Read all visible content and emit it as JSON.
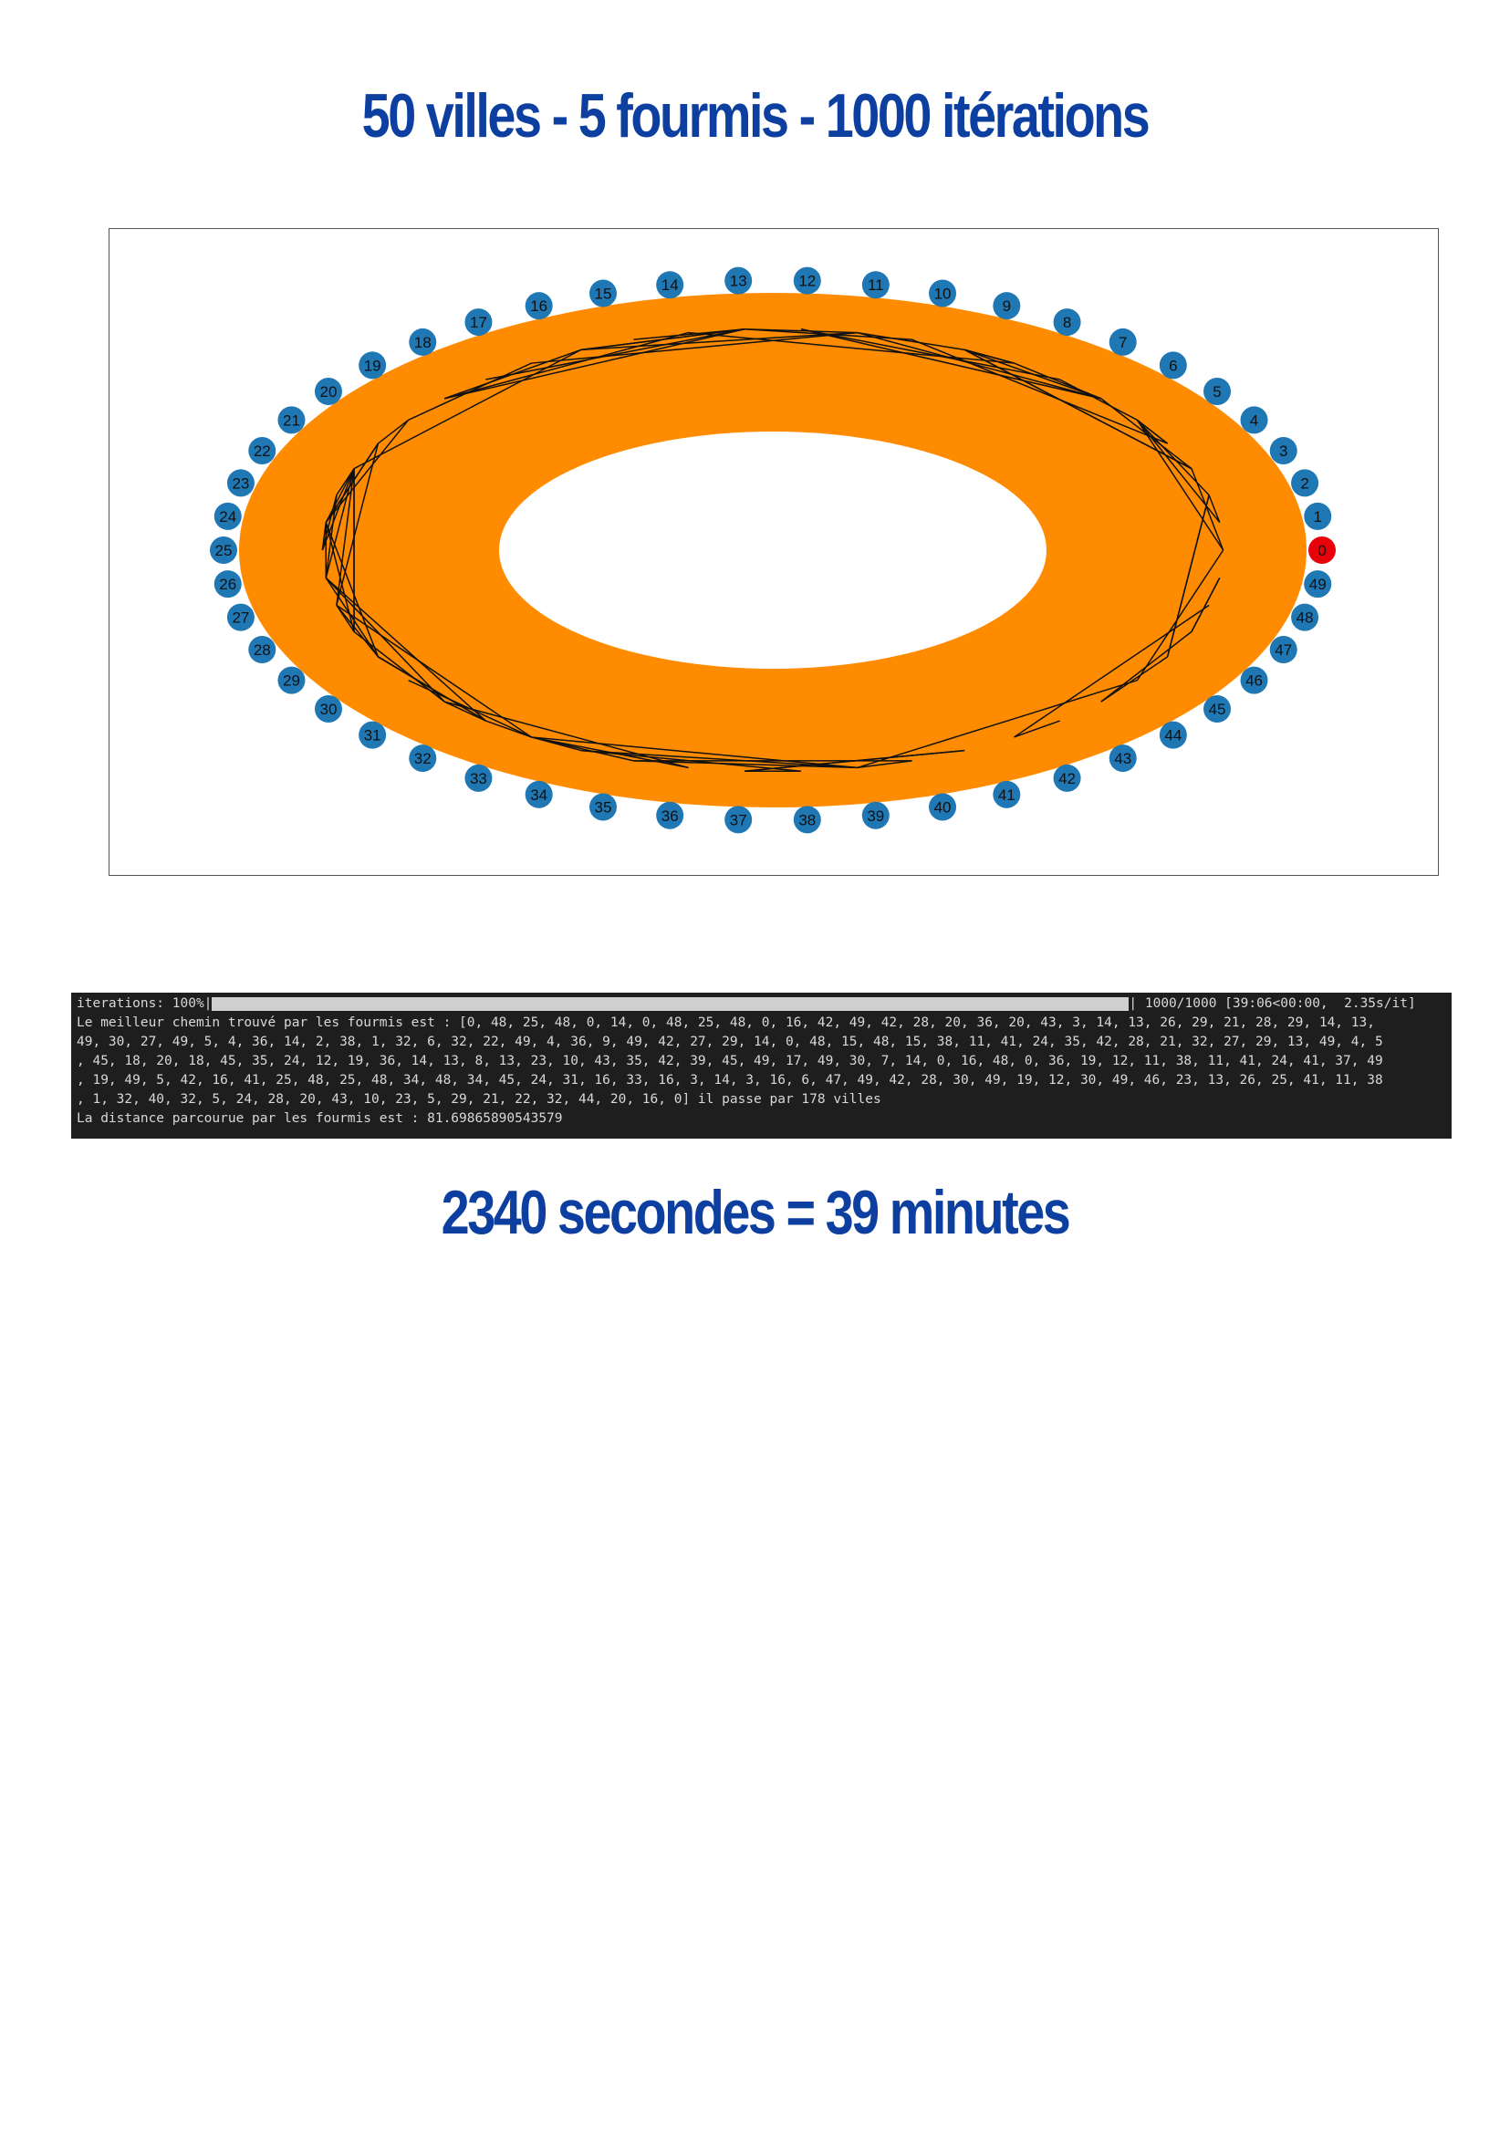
{
  "header": {
    "title": "50 villes - 5 fourmis - 1000 itérations"
  },
  "graph": {
    "nodes": [
      "0",
      "1",
      "2",
      "3",
      "4",
      "5",
      "6",
      "7",
      "8",
      "9",
      "10",
      "11",
      "12",
      "13",
      "14",
      "15",
      "16",
      "17",
      "18",
      "19",
      "20",
      "21",
      "22",
      "23",
      "24",
      "25",
      "26",
      "27",
      "28",
      "29",
      "30",
      "31",
      "32",
      "33",
      "34",
      "35",
      "36",
      "37",
      "38",
      "39",
      "40",
      "41",
      "42",
      "43",
      "44",
      "45",
      "46",
      "47",
      "48",
      "49"
    ]
  },
  "terminal": {
    "progress_label": "iterations: 100%|",
    "progress_stats": "| 1000/1000 [39:06<00:00,  2.35s/it]",
    "lines": [
      "Le meilleur chemin trouvé par les fourmis est : [0, 48, 25, 48, 0, 14, 0, 48, 25, 48, 0, 16, 42, 49, 42, 28, 20, 36, 20, 43, 3, 14, 13, 26, 29, 21, 28, 29, 14, 13,",
      "49, 30, 27, 49, 5, 4, 36, 14, 2, 38, 1, 32, 6, 32, 22, 49, 4, 36, 9, 49, 42, 27, 29, 14, 0, 48, 15, 48, 15, 38, 11, 41, 24, 35, 42, 28, 21, 32, 27, 29, 13, 49, 4, 5",
      ", 45, 18, 20, 18, 45, 35, 24, 12, 19, 36, 14, 13, 8, 13, 23, 10, 43, 35, 42, 39, 45, 49, 17, 49, 30, 7, 14, 0, 16, 48, 0, 36, 19, 12, 11, 38, 11, 41, 24, 41, 37, 49",
      ", 19, 49, 5, 42, 16, 41, 25, 48, 25, 48, 34, 48, 34, 45, 24, 31, 16, 33, 16, 3, 14, 3, 16, 6, 47, 49, 42, 28, 30, 49, 19, 12, 30, 49, 46, 23, 13, 26, 25, 41, 11, 38",
      ", 1, 32, 40, 32, 5, 24, 28, 20, 43, 10, 23, 5, 29, 21, 22, 32, 44, 20, 16, 0] il passe par 178 villes",
      "La distance parcourue par les fourmis est : 81.69865890543579"
    ]
  },
  "caption": "2340 secondes = 39 minutes"
}
